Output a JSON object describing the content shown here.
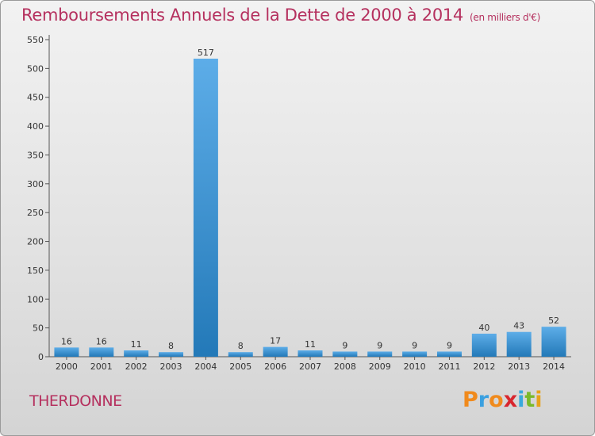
{
  "title": "Remboursements Annuels de la Dette de 2000 à 2014",
  "unit_note": "(en milliers d'€)",
  "commune": "THERDONNE",
  "logo": {
    "letters": [
      "P",
      "r",
      "o",
      "x",
      "i",
      "t",
      "i"
    ],
    "colors": [
      "#f08a1c",
      "#3aa0e0",
      "#f08a1c",
      "#d8262e",
      "#39a9dc",
      "#7ab929",
      "#e8a21a"
    ]
  },
  "colors": {
    "bar_top": "#5dade8",
    "bar_bottom": "#2379b8",
    "title": "#b5305e"
  },
  "chart_data": {
    "type": "bar",
    "categories": [
      "2000",
      "2001",
      "2002",
      "2003",
      "2004",
      "2005",
      "2006",
      "2007",
      "2008",
      "2009",
      "2010",
      "2011",
      "2012",
      "2013",
      "2014"
    ],
    "values": [
      16,
      16,
      11,
      8,
      517,
      8,
      17,
      11,
      9,
      9,
      9,
      9,
      40,
      43,
      52
    ],
    "data_labels": [
      "16",
      "16",
      "11",
      "8",
      "517",
      "8",
      "17",
      "11",
      "9",
      "9",
      "9",
      "9",
      "40",
      "43",
      "52"
    ],
    "yticks": [
      "0",
      "50",
      "100",
      "150",
      "200",
      "250",
      "300",
      "350",
      "400",
      "450",
      "500",
      "550"
    ],
    "ylim": [
      0,
      550
    ],
    "grid": false
  }
}
